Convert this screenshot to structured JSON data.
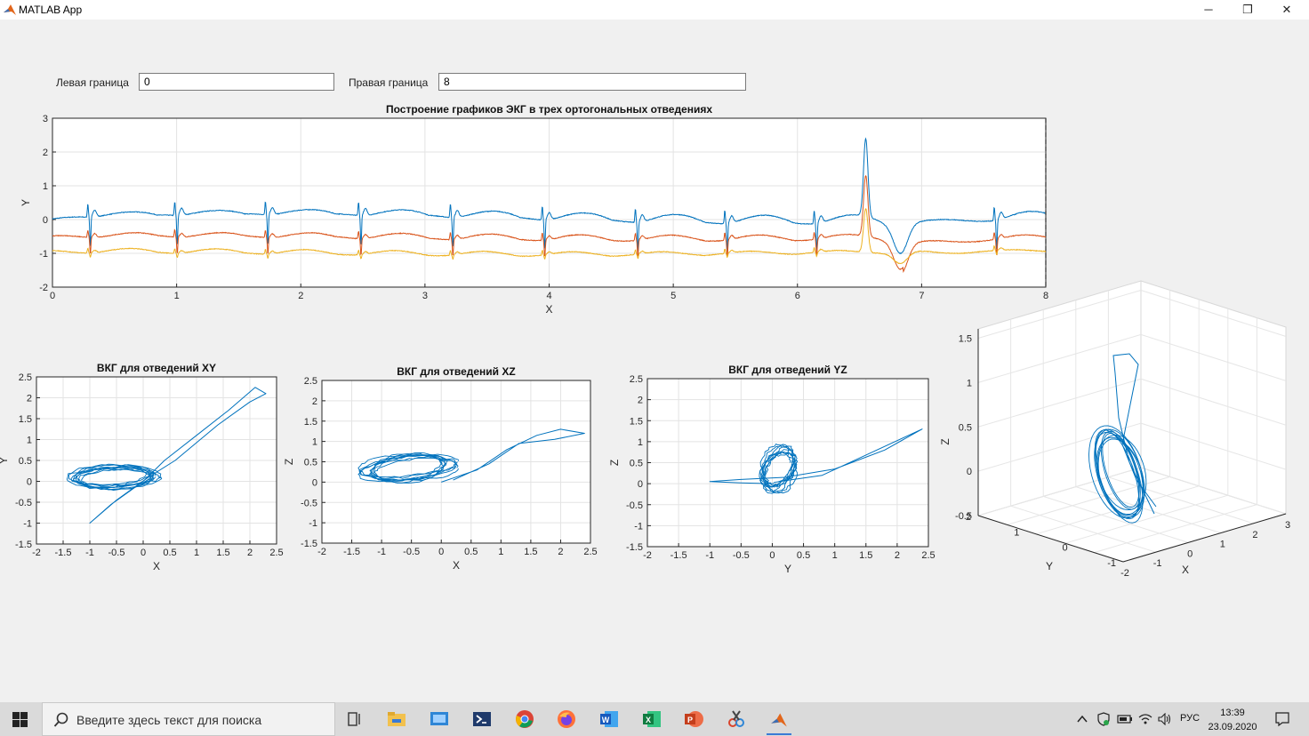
{
  "window": {
    "title": "MATLAB App",
    "minimize": "─",
    "maximize": "❐",
    "close": "✕"
  },
  "controls": {
    "left_label": "Левая граница",
    "left_value": "0",
    "right_label": "Правая граница",
    "right_value": "8"
  },
  "taskbar": {
    "search_placeholder": "Введите здесь текст для поиска",
    "lang": "РУС",
    "time": "13:39",
    "date": "23.09.2020"
  },
  "chart_data": [
    {
      "id": "ecg",
      "type": "line",
      "title": "Построение графиков ЭКГ в трех ортогональных отведениях",
      "xlabel": "X",
      "ylabel": "Y",
      "xlim": [
        0,
        8
      ],
      "ylim": [
        -2,
        3
      ],
      "xticks": [
        0,
        1,
        2,
        3,
        4,
        5,
        6,
        7,
        8
      ],
      "yticks": [
        -2,
        -1,
        0,
        1,
        2,
        3
      ],
      "grid": true,
      "beats": [
        0.3,
        1.0,
        1.73,
        2.48,
        3.22,
        3.96,
        4.71,
        5.43,
        6.15,
        7.6
      ],
      "pvc": 6.55,
      "series": [
        {
          "color": "#0072BD",
          "baseline": 0.02
        },
        {
          "color": "#D95319",
          "baseline": -0.55
        },
        {
          "color": "#EDB120",
          "baseline": -1.0
        }
      ]
    },
    {
      "id": "xy",
      "type": "line",
      "title": "ВКГ для отведений XY",
      "xlabel": "X",
      "ylabel": "Y",
      "xlim": [
        -2,
        2.5
      ],
      "ylim": [
        -1.5,
        2.5
      ],
      "xticks": [
        -2,
        -1.5,
        -1,
        -0.5,
        0,
        0.5,
        1,
        1.5,
        2,
        2.5
      ],
      "yticks": [
        -1.5,
        -1,
        -0.5,
        0,
        0.5,
        1,
        1.5,
        2,
        2.5
      ],
      "grid": true,
      "loop": [
        [
          0,
          0
        ],
        [
          0.4,
          0.5
        ],
        [
          1.0,
          1.1
        ],
        [
          1.6,
          1.7
        ],
        [
          2.1,
          2.25
        ],
        [
          2.3,
          2.1
        ],
        [
          2.0,
          1.9
        ],
        [
          1.4,
          1.35
        ],
        [
          0.6,
          0.5
        ],
        [
          0.1,
          0.1
        ],
        [
          -0.5,
          -0.45
        ],
        [
          -1.0,
          -1.0
        ],
        [
          -0.6,
          -0.55
        ],
        [
          -0.05,
          -0.05
        ]
      ],
      "cluster": {
        "cx": -0.55,
        "cy": 0.1,
        "rx": 0.85,
        "ry": 0.28
      },
      "color": "#0072BD"
    },
    {
      "id": "xz",
      "type": "line",
      "title": "ВКГ для отведений XZ",
      "xlabel": "X",
      "ylabel": "Z",
      "xlim": [
        -2,
        2.5
      ],
      "ylim": [
        -1.5,
        2.5
      ],
      "xticks": [
        -2,
        -1.5,
        -1,
        -0.5,
        0,
        0.5,
        1,
        1.5,
        2,
        2.5
      ],
      "yticks": [
        -1.5,
        -1,
        -0.5,
        0,
        0.5,
        1,
        1.5,
        2,
        2.5
      ],
      "grid": true,
      "loop": [
        [
          0,
          0
        ],
        [
          0.6,
          0.3
        ],
        [
          1.1,
          0.8
        ],
        [
          1.6,
          1.15
        ],
        [
          2.0,
          1.3
        ],
        [
          2.4,
          1.2
        ],
        [
          1.9,
          1.05
        ],
        [
          1.3,
          0.95
        ],
        [
          0.8,
          0.45
        ],
        [
          0.2,
          0.05
        ]
      ],
      "cluster": {
        "cx": -0.55,
        "cy": 0.35,
        "rx": 0.8,
        "ry": 0.35
      },
      "color": "#0072BD"
    },
    {
      "id": "yz",
      "type": "line",
      "title": "ВКГ для отведений YZ",
      "xlabel": "Y",
      "ylabel": "Z",
      "xlim": [
        -2,
        2.5
      ],
      "ylim": [
        -1.5,
        2.5
      ],
      "xticks": [
        -2,
        -1.5,
        -1,
        -0.5,
        0,
        0.5,
        1,
        1.5,
        2,
        2.5
      ],
      "yticks": [
        -1.5,
        -1,
        -0.5,
        0,
        0.5,
        1,
        1.5,
        2,
        2.5
      ],
      "grid": true,
      "loop": [
        [
          0,
          0
        ],
        [
          -0.5,
          0.02
        ],
        [
          -1.0,
          0.05
        ],
        [
          -0.5,
          0.1
        ],
        [
          0.2,
          0.15
        ],
        [
          1.0,
          0.35
        ],
        [
          1.8,
          0.8
        ],
        [
          2.4,
          1.3
        ],
        [
          1.6,
          0.75
        ],
        [
          0.8,
          0.2
        ],
        [
          0.1,
          0.05
        ]
      ],
      "cluster": {
        "cx": 0.1,
        "cy": 0.35,
        "rx": 0.28,
        "ry": 0.55
      },
      "color": "#0072BD"
    },
    {
      "id": "xyz",
      "type": "line",
      "title": "ВКГ для отведений XYZ",
      "xlabel": "X",
      "ylabel": "Y",
      "zlabel": "Z",
      "xticks": [
        -2,
        -1,
        0,
        1,
        2,
        3
      ],
      "yticks": [
        -1,
        0,
        1,
        2
      ],
      "zticks": [
        -0.5,
        0,
        0.5,
        1,
        1.5
      ],
      "grid": true,
      "color": "#0072BD"
    }
  ]
}
